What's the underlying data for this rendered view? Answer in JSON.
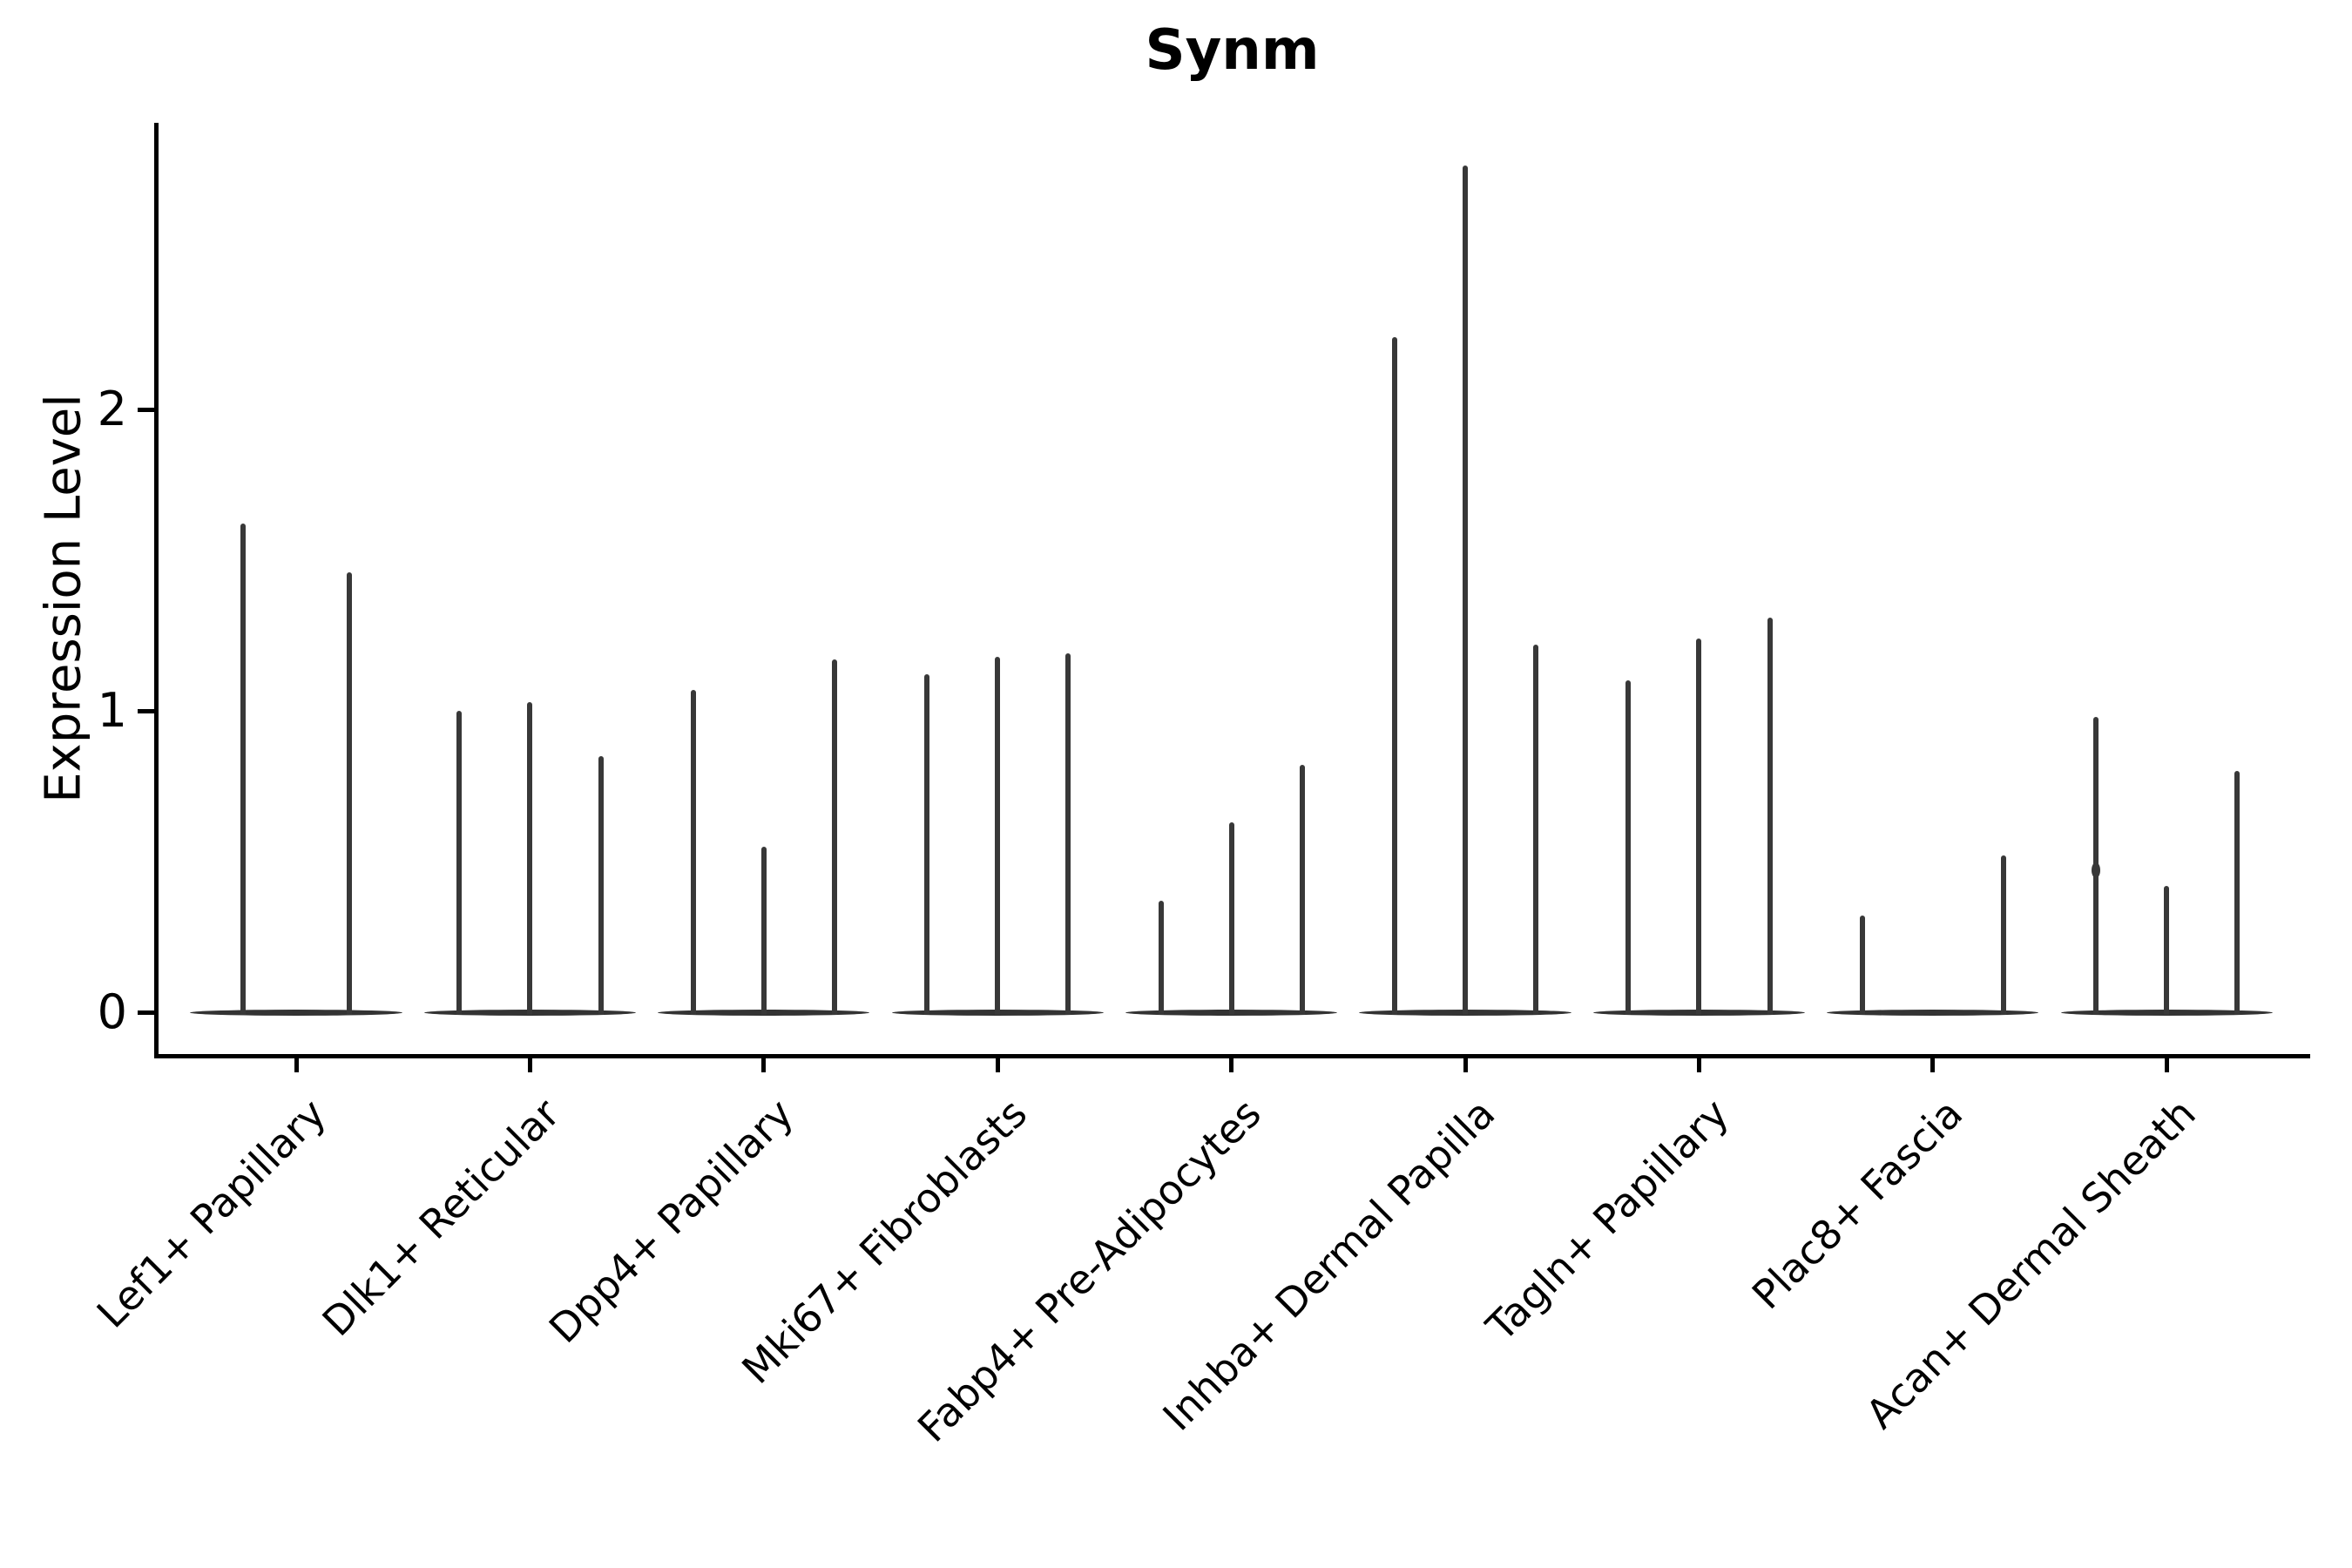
{
  "title": "Synm",
  "y_axis": {
    "label": "Expression Level",
    "ticks": [
      {
        "label": "0",
        "value": 0
      },
      {
        "label": "1",
        "value": 1
      },
      {
        "label": "2",
        "value": 2
      }
    ]
  },
  "x_axis": {
    "categories": [
      "Lef1+ Papillary",
      "Dlk1+ Reticular",
      "Dpp4+ Papillary",
      "Mki67+ Fibroblasts",
      "Fabp4+ Pre-Adipocytes",
      "Inhba+ Dermal Papilla",
      "Tagln+ Papillary",
      "Plac8+ Fascia",
      "Acan+ Dermal Sheath"
    ]
  },
  "colors": {
    "violin": "#383838",
    "violin_base": "#333333",
    "axis": "#000000",
    "text": "#000000",
    "background": "#ffffff"
  },
  "chart_data": {
    "type": "violin",
    "title": "Synm",
    "xlabel": "",
    "ylabel": "Expression Level",
    "ylim": [
      -0.14,
      2.95
    ],
    "yticks": [
      0,
      1,
      2
    ],
    "grid": false,
    "legend": "none",
    "categories": [
      "Lef1+ Papillary",
      "Dlk1+ Reticular",
      "Dpp4+ Papillary",
      "Mki67+ Fibroblasts",
      "Fabp4+ Pre-Adipocytes",
      "Inhba+ Dermal Papilla",
      "Tagln+ Papillary",
      "Plac8+ Fascia",
      "Acan+ Dermal Sheath"
    ],
    "description": "Each category shows 2-3 extremely skewed violins: a wide flat base at expression 0 and a thin spike reaching the maximum expression value of that violin. Null means an all-zero violin (no spike).",
    "groups": [
      {
        "category": "Lef1+ Papillary",
        "violin_max_values": [
          1.62,
          1.46
        ],
        "bulges": []
      },
      {
        "category": "Dlk1+ Reticular",
        "violin_max_values": [
          1.0,
          1.03,
          0.85
        ],
        "bulges": []
      },
      {
        "category": "Dpp4+ Papillary",
        "violin_max_values": [
          1.07,
          0.55,
          1.17
        ],
        "bulges": []
      },
      {
        "category": "Mki67+ Fibroblasts",
        "violin_max_values": [
          1.12,
          1.18,
          1.19
        ],
        "bulges": []
      },
      {
        "category": "Fabp4+ Pre-Adipocytes",
        "violin_max_values": [
          0.37,
          0.63,
          0.82
        ],
        "bulges": []
      },
      {
        "category": "Inhba+ Dermal Papilla",
        "violin_max_values": [
          2.24,
          2.81,
          1.22
        ],
        "bulges": []
      },
      {
        "category": "Tagln+ Papillary",
        "violin_max_values": [
          1.1,
          1.24,
          1.31
        ],
        "bulges": []
      },
      {
        "category": "Plac8+ Fascia",
        "violin_max_values": [
          0.32,
          null,
          0.52
        ],
        "bulges": []
      },
      {
        "category": "Acan+ Dermal Sheath",
        "violin_max_values": [
          0.98,
          0.42,
          0.8
        ],
        "bulges": [
          {
            "violin": 0,
            "value": 0.47
          }
        ]
      }
    ]
  }
}
